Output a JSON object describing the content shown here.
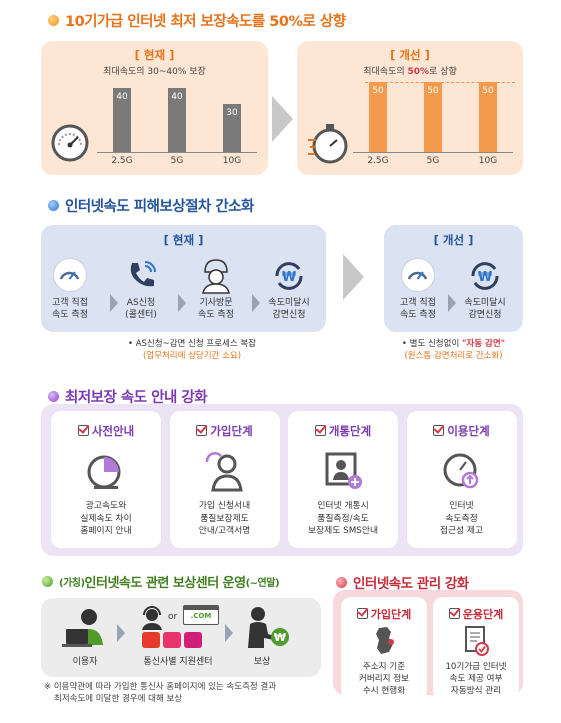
{
  "section1": {
    "title": "10기가급 인터넷 최저 보장속도를 50%로 상향",
    "current": {
      "title": "[ 현재 ]",
      "subtitle": "최대속도의 30~40% 보장",
      "bars": [
        {
          "cat": "2.5G",
          "value": 40
        },
        {
          "cat": "5G",
          "value": 40
        },
        {
          "cat": "10G",
          "value": 30
        }
      ]
    },
    "improved": {
      "title": "[ 개선 ]",
      "subtitle_pre": "최대속도의 ",
      "subtitle_hl": "50%",
      "subtitle_post": "로 상향",
      "bars": [
        {
          "cat": "2.5G",
          "value": 50
        },
        {
          "cat": "5G",
          "value": 50
        },
        {
          "cat": "10G",
          "value": 50
        }
      ]
    }
  },
  "section2": {
    "title": "인터넷속도 피해보상절차 간소화",
    "current": {
      "title": "[ 현재 ]",
      "steps": [
        {
          "icon": "speed-gauge-icon",
          "line1": "고객 직접",
          "line2": "속도 측정"
        },
        {
          "icon": "phone-call-icon",
          "line1": "AS신청",
          "line2": "(콜센터)"
        },
        {
          "icon": "technician-icon",
          "line1": "기사방문",
          "line2": "속도 측정"
        },
        {
          "icon": "won-refresh-icon",
          "line1": "속도미달시",
          "line2": "감면신청"
        }
      ],
      "note1": "• AS신청~감면 신청 프로세스 복잡",
      "note2": "(업무처리에 상당기간 소요)"
    },
    "improved": {
      "title": "[ 개선 ]",
      "steps": [
        {
          "icon": "speed-gauge-icon",
          "line1": "고객 직접",
          "line2": "속도 측정"
        },
        {
          "icon": "won-refresh-icon",
          "line1": "속도미달시",
          "line2": "감면신청"
        }
      ],
      "note1_pre": "• 별도 신청없이 ",
      "note1_hl": "\"자동 감면\"",
      "note2": "(원스톱 감면처리로 간소화)"
    }
  },
  "section3": {
    "title": "최저보장 속도 안내 강화",
    "cards": [
      {
        "head": "사전안내",
        "icon": "speed-chart-icon",
        "lines": [
          "광고속도와",
          "실제속도 차이",
          "홈페이지 안내"
        ]
      },
      {
        "head": "가입단계",
        "icon": "user-refresh-icon",
        "lines": [
          "가입 신청서내",
          "품질보장제도",
          "안내/고객서명"
        ]
      },
      {
        "head": "개통단계",
        "icon": "id-card-plus-icon",
        "lines": [
          "인터넷 개통시",
          "품질측정/속도",
          "보장제도 SMS안내"
        ]
      },
      {
        "head": "이용단계",
        "icon": "gauge-up-icon",
        "lines": [
          "인터넷",
          "속도측정",
          "접근성 제고"
        ]
      }
    ]
  },
  "section4": {
    "title_prefix": "(가칭)",
    "title_main": "인터넷속도 관련 보상센터 운영",
    "title_suffix": "(~연말)",
    "labels": [
      "이용자",
      "통신사별 지원센터",
      "보상"
    ],
    "com_label": ".COM",
    "or_label": "or",
    "note1": "※ 이용약관에 따라 가입한 통신사 홈페이지에 있는 속도측정 결과",
    "note2": "최저속도에 미달한 경우에 대해 보상"
  },
  "section5": {
    "title": "인터넷속도 관리 강화",
    "cards": [
      {
        "head": "가입단계",
        "icon": "korea-map-icon",
        "lines": [
          "주소지 기준",
          "커버리지 정보",
          "수시 현행화"
        ]
      },
      {
        "head": "운용단계",
        "icon": "document-check-icon",
        "lines": [
          "10기가급 인터넷",
          "속도 제공 여부",
          "자동방식 관리"
        ]
      }
    ]
  },
  "colors": {
    "orange": "#e8731a",
    "blue": "#24549c",
    "purple": "#7a3bb0",
    "green": "#3f7f1f",
    "red": "#c42b3a"
  }
}
